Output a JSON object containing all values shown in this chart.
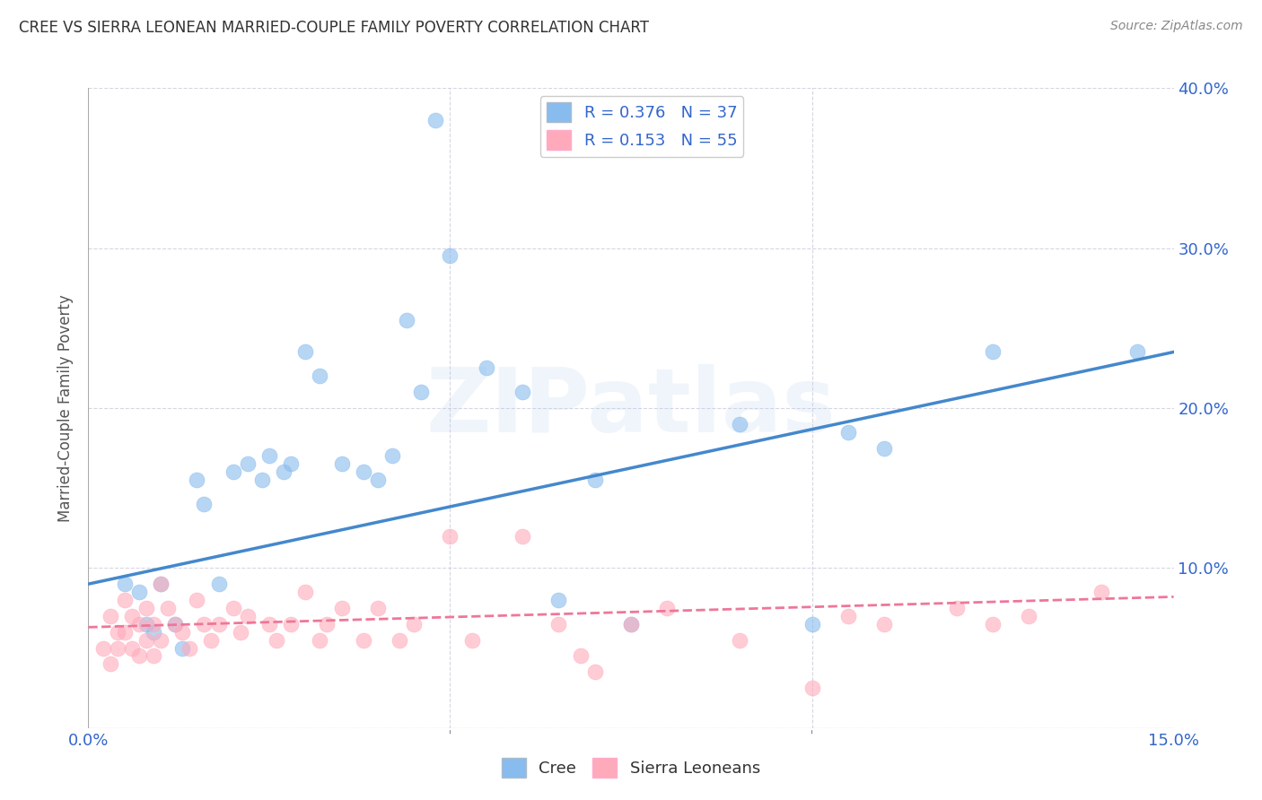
{
  "title": "CREE VS SIERRA LEONEAN MARRIED-COUPLE FAMILY POVERTY CORRELATION CHART",
  "source": "Source: ZipAtlas.com",
  "ylabel": "Married-Couple Family Poverty",
  "xlim": [
    0.0,
    0.15
  ],
  "ylim": [
    0.0,
    0.4
  ],
  "watermark": "ZIPatlas",
  "cree_color": "#88BBEE",
  "sl_color": "#FFAABB",
  "cree_line_color": "#4488CC",
  "sl_line_color": "#EE7799",
  "cree_R": 0.376,
  "cree_N": 37,
  "sl_R": 0.153,
  "sl_N": 55,
  "cree_line_y0": 0.09,
  "cree_line_y1": 0.235,
  "sl_line_y0": 0.063,
  "sl_line_y1": 0.082,
  "cree_x": [
    0.005,
    0.007,
    0.008,
    0.009,
    0.01,
    0.012,
    0.013,
    0.015,
    0.016,
    0.018,
    0.02,
    0.022,
    0.024,
    0.025,
    0.027,
    0.028,
    0.03,
    0.032,
    0.035,
    0.038,
    0.04,
    0.042,
    0.044,
    0.046,
    0.048,
    0.05,
    0.055,
    0.06,
    0.065,
    0.07,
    0.075,
    0.09,
    0.1,
    0.105,
    0.11,
    0.125,
    0.145
  ],
  "cree_y": [
    0.09,
    0.085,
    0.065,
    0.06,
    0.09,
    0.065,
    0.05,
    0.155,
    0.14,
    0.09,
    0.16,
    0.165,
    0.155,
    0.17,
    0.16,
    0.165,
    0.235,
    0.22,
    0.165,
    0.16,
    0.155,
    0.17,
    0.255,
    0.21,
    0.38,
    0.295,
    0.225,
    0.21,
    0.08,
    0.155,
    0.065,
    0.19,
    0.065,
    0.185,
    0.175,
    0.235,
    0.235
  ],
  "sl_x": [
    0.002,
    0.003,
    0.003,
    0.004,
    0.004,
    0.005,
    0.005,
    0.006,
    0.006,
    0.007,
    0.007,
    0.008,
    0.008,
    0.009,
    0.009,
    0.01,
    0.01,
    0.011,
    0.012,
    0.013,
    0.014,
    0.015,
    0.016,
    0.017,
    0.018,
    0.02,
    0.021,
    0.022,
    0.025,
    0.026,
    0.028,
    0.03,
    0.032,
    0.033,
    0.035,
    0.038,
    0.04,
    0.043,
    0.045,
    0.05,
    0.053,
    0.06,
    0.065,
    0.068,
    0.07,
    0.075,
    0.08,
    0.09,
    0.1,
    0.105,
    0.11,
    0.12,
    0.125,
    0.13,
    0.14
  ],
  "sl_y": [
    0.05,
    0.07,
    0.04,
    0.06,
    0.05,
    0.08,
    0.06,
    0.07,
    0.05,
    0.065,
    0.045,
    0.075,
    0.055,
    0.065,
    0.045,
    0.09,
    0.055,
    0.075,
    0.065,
    0.06,
    0.05,
    0.08,
    0.065,
    0.055,
    0.065,
    0.075,
    0.06,
    0.07,
    0.065,
    0.055,
    0.065,
    0.085,
    0.055,
    0.065,
    0.075,
    0.055,
    0.075,
    0.055,
    0.065,
    0.12,
    0.055,
    0.12,
    0.065,
    0.045,
    0.035,
    0.065,
    0.075,
    0.055,
    0.025,
    0.07,
    0.065,
    0.075,
    0.065,
    0.07,
    0.085
  ]
}
